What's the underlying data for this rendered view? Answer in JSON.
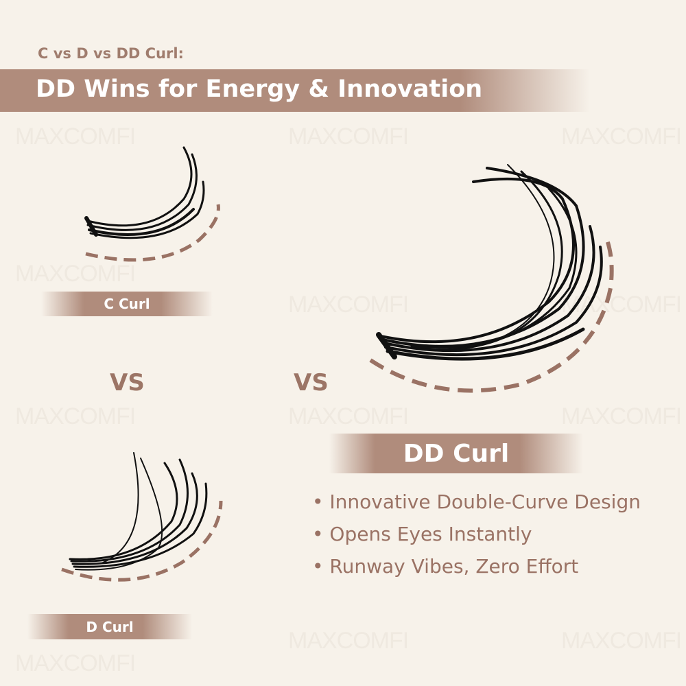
{
  "watermark": "MAXCOMFI",
  "header": {
    "subtitle": "C vs D vs DD Curl:",
    "title": "DD Wins for Energy & Innovation"
  },
  "products": [
    {
      "label": "C Curl"
    },
    {
      "label": "D Curl"
    },
    {
      "label": "DD Curl"
    }
  ],
  "vs_labels": [
    "VS",
    "VS"
  ],
  "features": [
    "• Innovative Double-Curve Design",
    "• Opens Eyes Instantly",
    "• Runway Vibes, Zero Effort"
  ],
  "colors": {
    "background": "#f7f2ea",
    "accent": "#b08c7c",
    "text": "#9a7264"
  }
}
